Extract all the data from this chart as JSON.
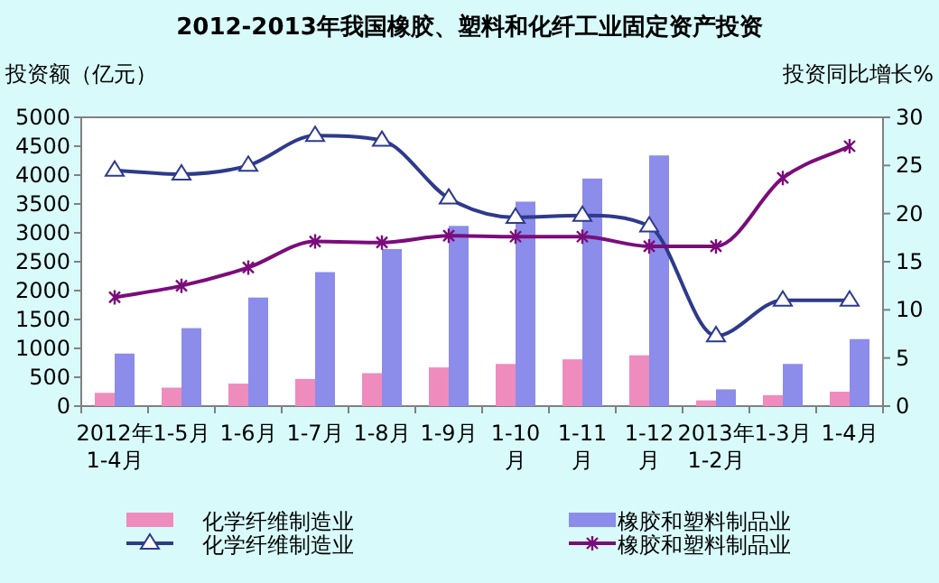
{
  "chart_data": {
    "type": "bar",
    "title": "2012-2013年我国橡胶、塑料和化纤工业固定资产投资",
    "ylabel": "投资额（亿元）",
    "y2label": "投资同比增长%",
    "categories": [
      "2012年\n1-4月",
      "1-5月",
      "1-6月",
      "1-7月",
      "1-8月",
      "1-9月",
      "1-10\n月",
      "1-11\n月",
      "1-12\n月",
      "2013年\n1-2月",
      "1-3月",
      "1-4月"
    ],
    "series": [
      {
        "name": "化学纤维制造业",
        "color": "#ee8cbe",
        "values": [
          230,
          320,
          390,
          470,
          570,
          670,
          730,
          810,
          880,
          100,
          190,
          250
        ]
      },
      {
        "name": "橡胶和塑料制品业",
        "color": "#8c8cea",
        "values": [
          910,
          1350,
          1880,
          2320,
          2720,
          3120,
          3540,
          3940,
          4340,
          290,
          730,
          1160
        ]
      },
      {
        "name": "化学纤维制造业",
        "type": "line",
        "axis": "y2",
        "color": "#2e3a8c",
        "marker": "triangle",
        "values": [
          24.5,
          24.1,
          25,
          28.1,
          27.6,
          21.6,
          19.6,
          19.8,
          18.7,
          7.3,
          11,
          11
        ]
      },
      {
        "name": "橡胶和塑料制品业",
        "type": "line",
        "axis": "y2",
        "color": "#7b0c7b",
        "marker": "cross",
        "values": [
          11.3,
          12.5,
          14.4,
          17.1,
          17,
          17.7,
          17.6,
          17.6,
          16.6,
          16.6,
          23.7,
          27
        ]
      }
    ],
    "ylim": [
      0,
      5000
    ],
    "yticks": [
      0,
      500,
      1000,
      1500,
      2000,
      2500,
      3000,
      3500,
      4000,
      4500,
      5000
    ],
    "y2lim": [
      0,
      30
    ],
    "y2ticks": [
      0,
      5,
      10,
      15,
      20,
      25,
      30
    ],
    "legend": "bottom"
  }
}
